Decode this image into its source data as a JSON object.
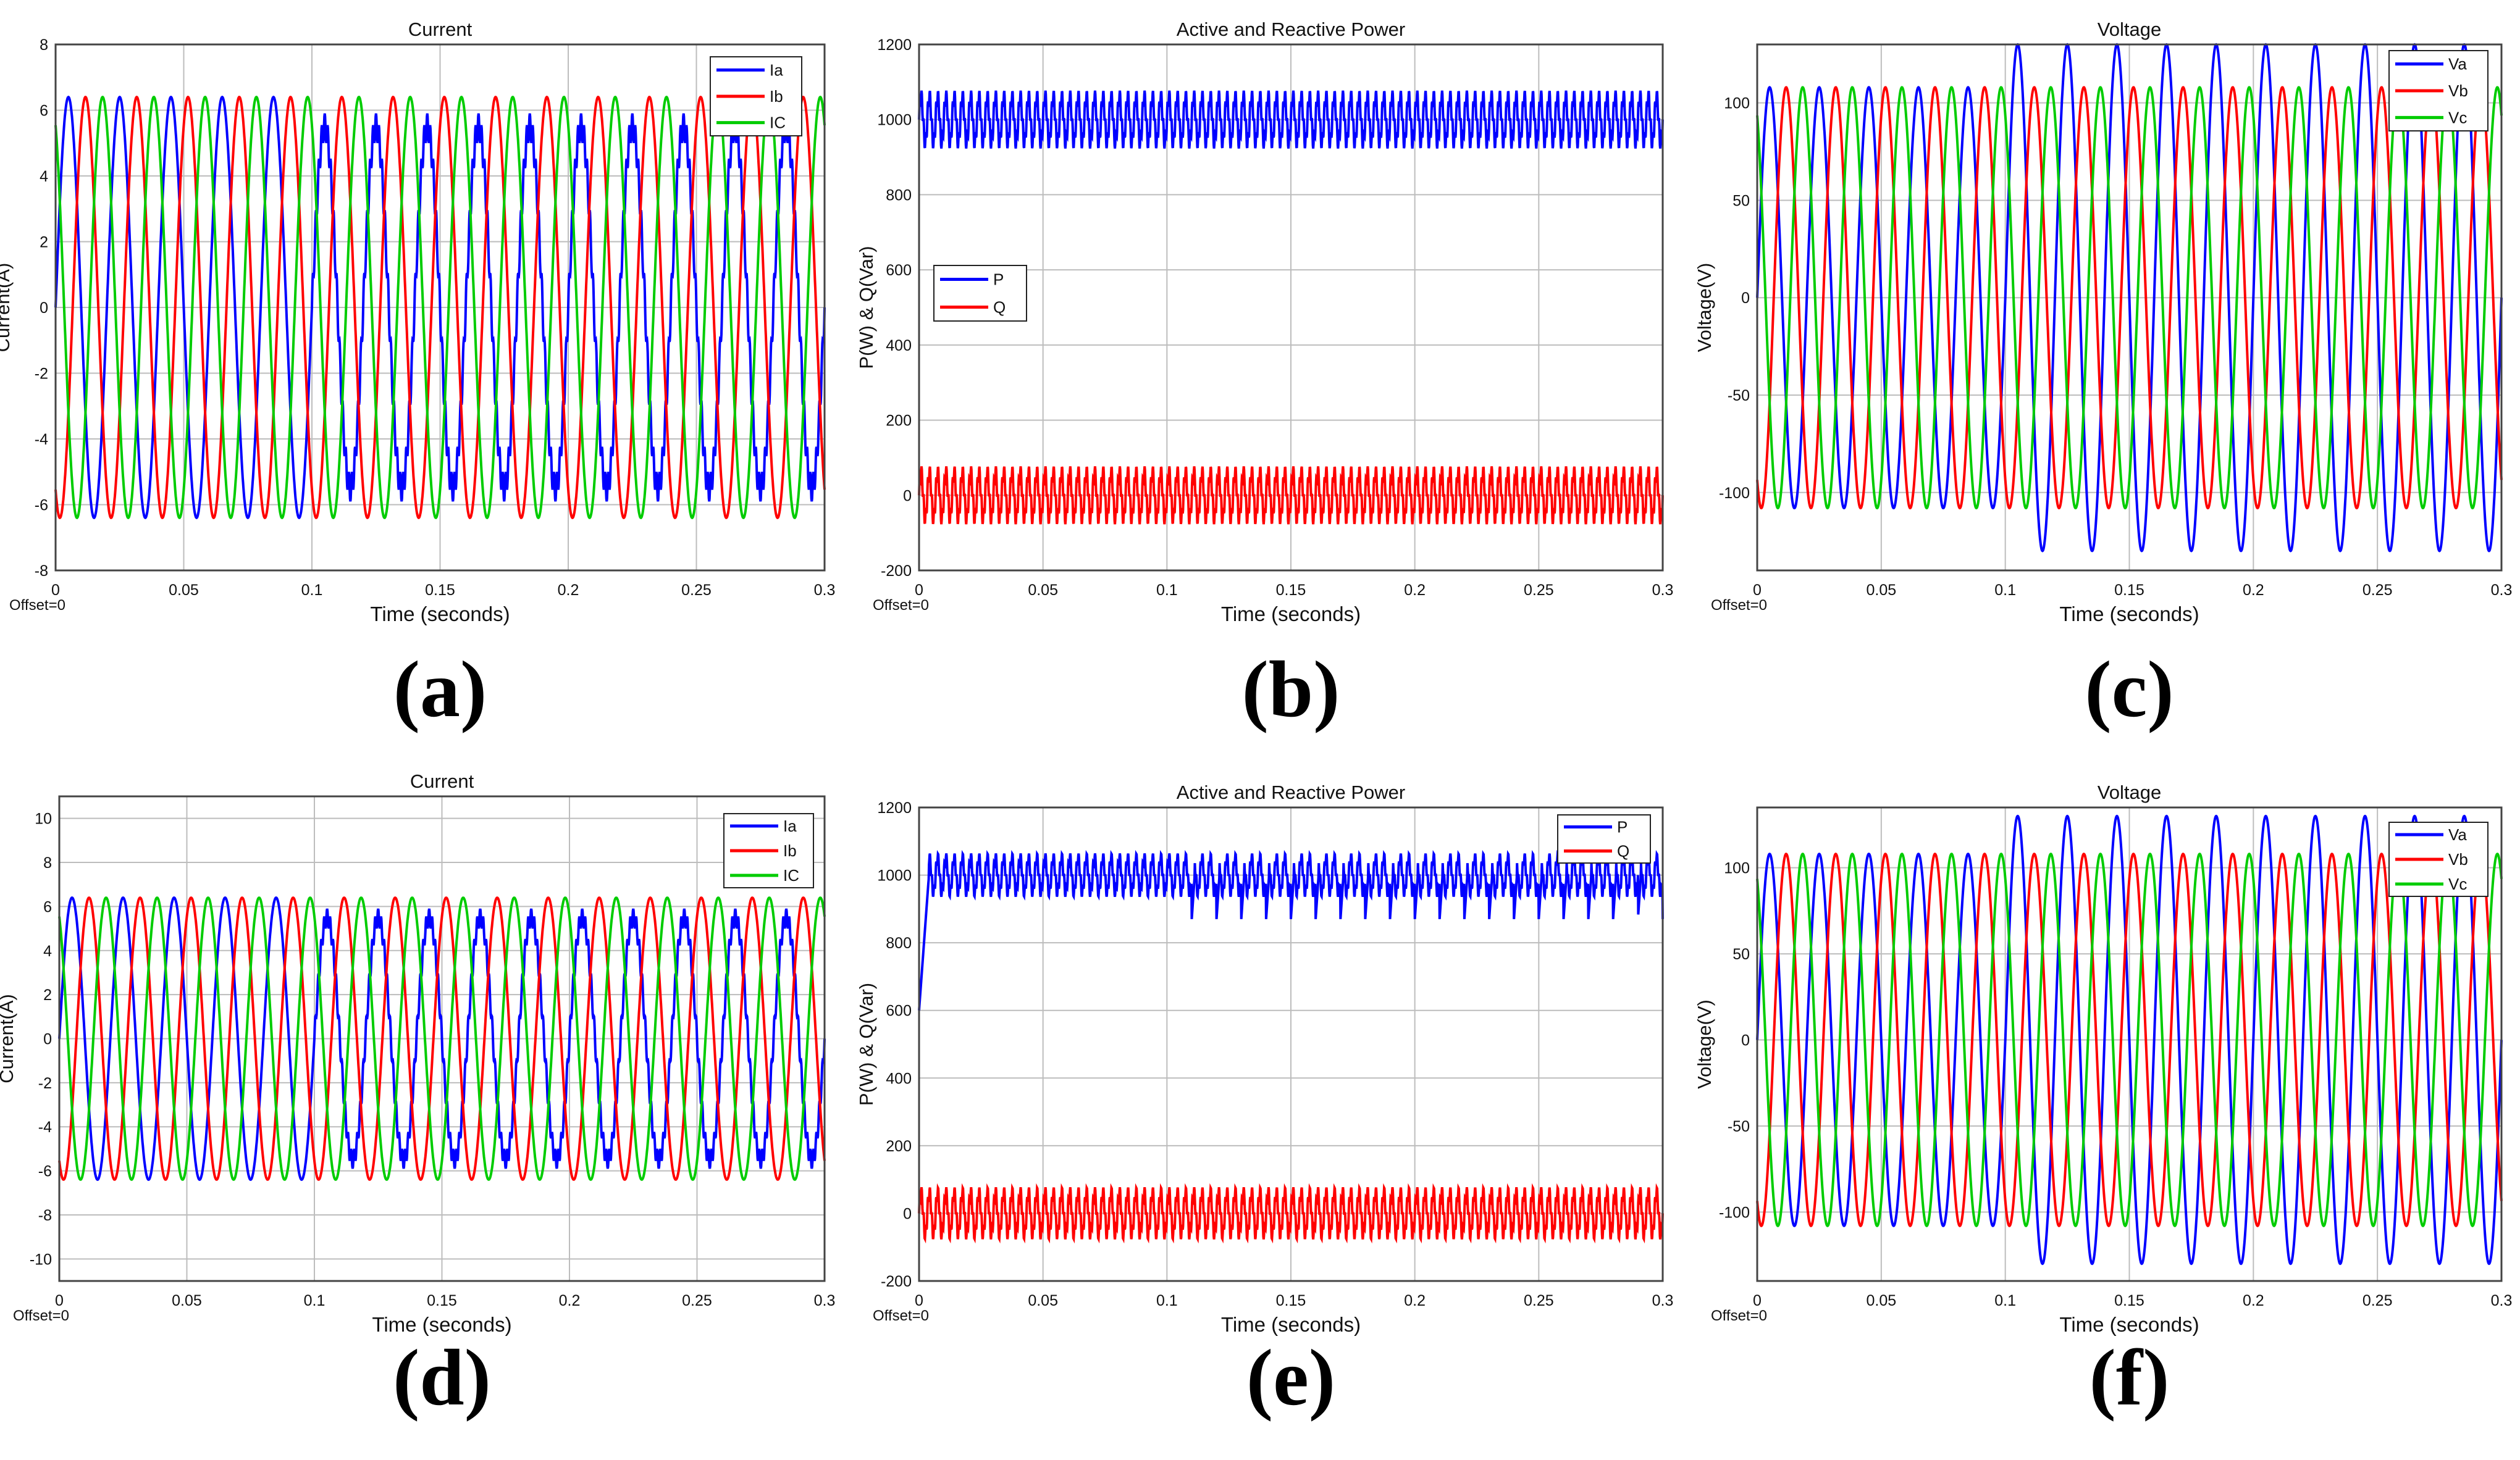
{
  "x_axis": {
    "label": "Time (seconds)",
    "ticks": [
      "0",
      "0.05",
      "0.1",
      "0.15",
      "0.2",
      "0.25",
      "0.3"
    ],
    "offset_label": "Offset=0"
  },
  "colors": {
    "blue": "#0000ff",
    "red": "#ff0000",
    "green": "#00cc00",
    "text": "#111111"
  },
  "chart_data": [
    {
      "type": "line",
      "panel": "(a)",
      "title": "Current",
      "xlabel": "Time (seconds)",
      "ylabel": "Current(A)",
      "xlim": [
        0,
        0.3
      ],
      "ylim": [
        -8,
        8
      ],
      "yticks": [
        "8",
        "6",
        "4",
        "2",
        "0",
        "-2",
        "-4",
        "-6",
        "-8"
      ],
      "legend": [
        "Ia",
        "Ib",
        "IC"
      ],
      "legend_position": "top-right",
      "offset_label": "Offset=0",
      "signal": "three-phase current, 50 Hz, peak ≈ 6.4 A; phase a dips to ≈ 5.5 A peak with ripple after 0.1 s",
      "series": [
        {
          "name": "Ia",
          "amplitude": 6.4,
          "amplitude_after_0_1s": 5.5,
          "frequency_hz": 50,
          "phase_deg": 0,
          "color": "#0000ff"
        },
        {
          "name": "Ib",
          "amplitude": 6.4,
          "frequency_hz": 50,
          "phase_deg": -120,
          "color": "#ff0000"
        },
        {
          "name": "IC",
          "amplitude": 6.4,
          "frequency_hz": 50,
          "phase_deg": 120,
          "color": "#00cc00"
        }
      ]
    },
    {
      "type": "line",
      "panel": "(b)",
      "title": "Active and Reactive Power",
      "xlabel": "Time (seconds)",
      "ylabel": "P(W) & Q(Var)",
      "xlim": [
        0,
        0.3
      ],
      "ylim": [
        -200,
        1200
      ],
      "yticks": [
        "1200",
        "1000",
        "800",
        "600",
        "400",
        "200",
        "0",
        "-200"
      ],
      "legend": [
        "P",
        "Q"
      ],
      "legend_position": "middle-left",
      "offset_label": "Offset=0",
      "signal": "P ≈ 1000 W and Q ≈ 0 Var with 100 Hz ripple",
      "series": [
        {
          "name": "P",
          "mean": 1000,
          "ripple": 60,
          "color": "#0000ff"
        },
        {
          "name": "Q",
          "mean": 0,
          "ripple": 60,
          "color": "#ff0000"
        }
      ]
    },
    {
      "type": "line",
      "panel": "(c)",
      "title": "Voltage",
      "xlabel": "Time (seconds)",
      "ylabel": "Voltage(V)",
      "xlim": [
        0,
        0.3
      ],
      "ylim": [
        -140,
        130
      ],
      "yticks": [
        "100",
        "50",
        "0",
        "-50",
        "-100"
      ],
      "legend": [
        "Va",
        "Vb",
        "Vc"
      ],
      "legend_position": "top-right",
      "offset_label": "Offset=0",
      "signal": "three-phase voltage, 50 Hz, peak ≈ 108 V; Va rises to ≈ 130 V peak after 0.1 s",
      "series": [
        {
          "name": "Va",
          "amplitude": 108,
          "amplitude_after_0_1s": 130,
          "frequency_hz": 50,
          "phase_deg": 0,
          "color": "#0000ff"
        },
        {
          "name": "Vb",
          "amplitude": 108,
          "frequency_hz": 50,
          "phase_deg": -120,
          "color": "#ff0000"
        },
        {
          "name": "Vc",
          "amplitude": 108,
          "frequency_hz": 50,
          "phase_deg": 120,
          "color": "#00cc00"
        }
      ]
    },
    {
      "type": "line",
      "panel": "(d)",
      "title": "Current",
      "xlabel": "Time (seconds)",
      "ylabel": "Current(A)",
      "xlim": [
        0,
        0.3
      ],
      "ylim": [
        -11,
        11
      ],
      "yticks": [
        "10",
        "8",
        "6",
        "4",
        "2",
        "0",
        "-2",
        "-4",
        "-6",
        "-8",
        "-10"
      ],
      "legend": [
        "Ia",
        "Ib",
        "IC"
      ],
      "legend_position": "top-right",
      "offset_label": "Offset=0",
      "signal": "three-phase current, 50 Hz, peak ≈ 6.4 A; phase a ≈ 5.5 A peak with ripple after 0.1 s",
      "series": [
        {
          "name": "Ia",
          "amplitude": 6.4,
          "amplitude_after_0_1s": 5.5,
          "frequency_hz": 50,
          "phase_deg": 0,
          "color": "#0000ff"
        },
        {
          "name": "Ib",
          "amplitude": 6.4,
          "frequency_hz": 50,
          "phase_deg": -120,
          "color": "#ff0000"
        },
        {
          "name": "IC",
          "amplitude": 6.4,
          "frequency_hz": 50,
          "phase_deg": 120,
          "color": "#00cc00"
        }
      ]
    },
    {
      "type": "line",
      "panel": "(e)",
      "title": "Active and Reactive Power",
      "xlabel": "Time (seconds)",
      "ylabel": "P(W) & Q(Var)",
      "xlim": [
        0,
        0.3
      ],
      "ylim": [
        -200,
        1200
      ],
      "yticks": [
        "1200",
        "1000",
        "800",
        "600",
        "400",
        "200",
        "0",
        "-200"
      ],
      "legend": [
        "P",
        "Q"
      ],
      "legend_position": "top-right",
      "offset_label": "Offset=0",
      "signal": "P ≈ 1000 W (startup from ≈ 600 W) with dips to ≈ 870 W after 0.1 s; Q ≈ 0 Var with ripple",
      "series": [
        {
          "name": "P",
          "mean": 1000,
          "ripple": 50,
          "dip_after_0_1s": 870,
          "color": "#0000ff"
        },
        {
          "name": "Q",
          "mean": 0,
          "ripple": 60,
          "color": "#ff0000"
        }
      ]
    },
    {
      "type": "line",
      "panel": "(f)",
      "title": "Voltage",
      "xlabel": "Time (seconds)",
      "ylabel": "Voltage(V)",
      "xlim": [
        0,
        0.3
      ],
      "ylim": [
        -140,
        135
      ],
      "yticks": [
        "100",
        "50",
        "0",
        "-50",
        "-100"
      ],
      "legend": [
        "Va",
        "Vb",
        "Vc"
      ],
      "legend_position": "top-right",
      "offset_label": "Offset=0",
      "signal": "three-phase voltage, 50 Hz, peak ≈ 108 V; Va rises to ≈ 130 V peak after 0.1 s",
      "series": [
        {
          "name": "Va",
          "amplitude": 108,
          "amplitude_after_0_1s": 130,
          "frequency_hz": 50,
          "phase_deg": 0,
          "color": "#0000ff"
        },
        {
          "name": "Vb",
          "amplitude": 108,
          "frequency_hz": 50,
          "phase_deg": -120,
          "color": "#ff0000"
        },
        {
          "name": "Vc",
          "amplitude": 108,
          "frequency_hz": 50,
          "phase_deg": 120,
          "color": "#00cc00"
        }
      ]
    }
  ]
}
